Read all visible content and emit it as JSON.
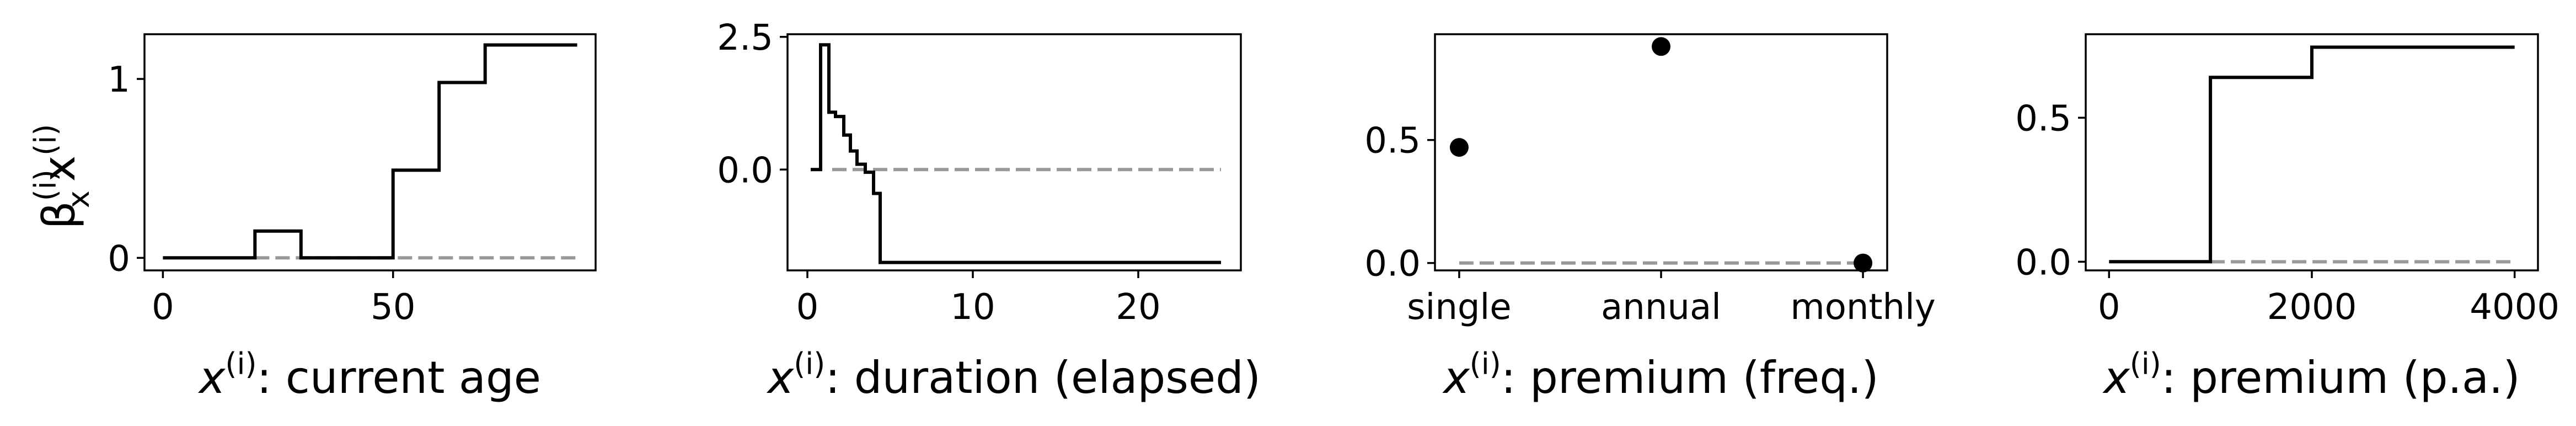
{
  "ylabel_main": "β",
  "ylabel_sub": "x",
  "ylabel_sup": "(i)",
  "ylabel_tail": "x",
  "ylabel_tail_sup": "(i)",
  "chart_data": [
    {
      "type": "line",
      "step": true,
      "xlabel_prefix": "x",
      "xlabel_sup": "(i)",
      "xlabel": ": current age",
      "xlim": [
        -4,
        94
      ],
      "ylim": [
        -0.07,
        1.25
      ],
      "xticks": [
        0,
        50
      ],
      "xtick_labels": [
        "0",
        "50"
      ],
      "yticks": [
        0,
        1
      ],
      "ytick_labels": [
        "0",
        "1"
      ],
      "reference_line": {
        "y": 0,
        "x": [
          20,
          90
        ],
        "style": "dashed",
        "color": "#999999"
      },
      "series": [
        {
          "x": [
            0,
            20,
            20,
            30,
            30,
            50,
            50,
            60,
            60,
            70,
            70,
            90
          ],
          "y": [
            0,
            0,
            0.15,
            0.15,
            0,
            0,
            0.49,
            0.49,
            0.98,
            0.98,
            1.19,
            1.19
          ]
        }
      ]
    },
    {
      "type": "line",
      "step": true,
      "xlabel_prefix": "x",
      "xlabel_sup": "(i)",
      "xlabel": ": duration (elapsed)",
      "xlim": [
        -1.2,
        26.2
      ],
      "ylim": [
        -1.9,
        2.55
      ],
      "xticks": [
        0,
        10,
        20
      ],
      "xtick_labels": [
        "0",
        "10",
        "20"
      ],
      "yticks": [
        0,
        2.5
      ],
      "ytick_labels": [
        "0.0",
        "2.5"
      ],
      "reference_line": {
        "y": 0,
        "x": [
          1.5,
          25
        ],
        "style": "dashed",
        "color": "#999999"
      },
      "series": [
        {
          "x": [
            0.2,
            0.8,
            0.8,
            1.3,
            1.3,
            1.7,
            1.7,
            2.2,
            2.2,
            2.6,
            2.6,
            3.0,
            3.0,
            3.5,
            3.5,
            4.0,
            4.0,
            4.4,
            4.4,
            25
          ],
          "y": [
            0,
            0,
            2.35,
            2.35,
            1.08,
            1.08,
            1.0,
            1.0,
            0.65,
            0.65,
            0.35,
            0.35,
            0.1,
            0.1,
            -0.05,
            -0.05,
            -0.45,
            -0.45,
            -1.75,
            -1.75
          ]
        }
      ]
    },
    {
      "type": "scatter",
      "xlabel_prefix": "x",
      "xlabel_sup": "(i)",
      "xlabel": ": premium (freq.)",
      "categories": [
        "single",
        "annual",
        "monthly"
      ],
      "xlim": [
        -0.12,
        2.12
      ],
      "ylim": [
        -0.03,
        0.93
      ],
      "yticks": [
        0,
        0.5
      ],
      "ytick_labels": [
        "0.0",
        "0.5"
      ],
      "reference_line": {
        "y": 0,
        "x": [
          0,
          2
        ],
        "style": "dashed",
        "color": "#999999"
      },
      "series": [
        {
          "values": [
            0.47,
            0.88,
            0.0
          ]
        }
      ]
    },
    {
      "type": "line",
      "step": true,
      "xlabel_prefix": "x",
      "xlabel_sup": "(i)",
      "xlabel": ": premium (p.a.)",
      "xlim": [
        -230,
        4230
      ],
      "ylim": [
        -0.03,
        0.79
      ],
      "xticks": [
        0,
        2000,
        4000
      ],
      "xtick_labels": [
        "0",
        "2000",
        "4000"
      ],
      "yticks": [
        0,
        0.5
      ],
      "ytick_labels": [
        "0.0",
        "0.5"
      ],
      "reference_line": {
        "y": 0,
        "x": [
          1000,
          4000
        ],
        "style": "dashed",
        "color": "#999999"
      },
      "series": [
        {
          "x": [
            0,
            1000,
            1000,
            2000,
            2000,
            4000
          ],
          "y": [
            0,
            0,
            0.64,
            0.64,
            0.745,
            0.745
          ]
        }
      ]
    }
  ]
}
